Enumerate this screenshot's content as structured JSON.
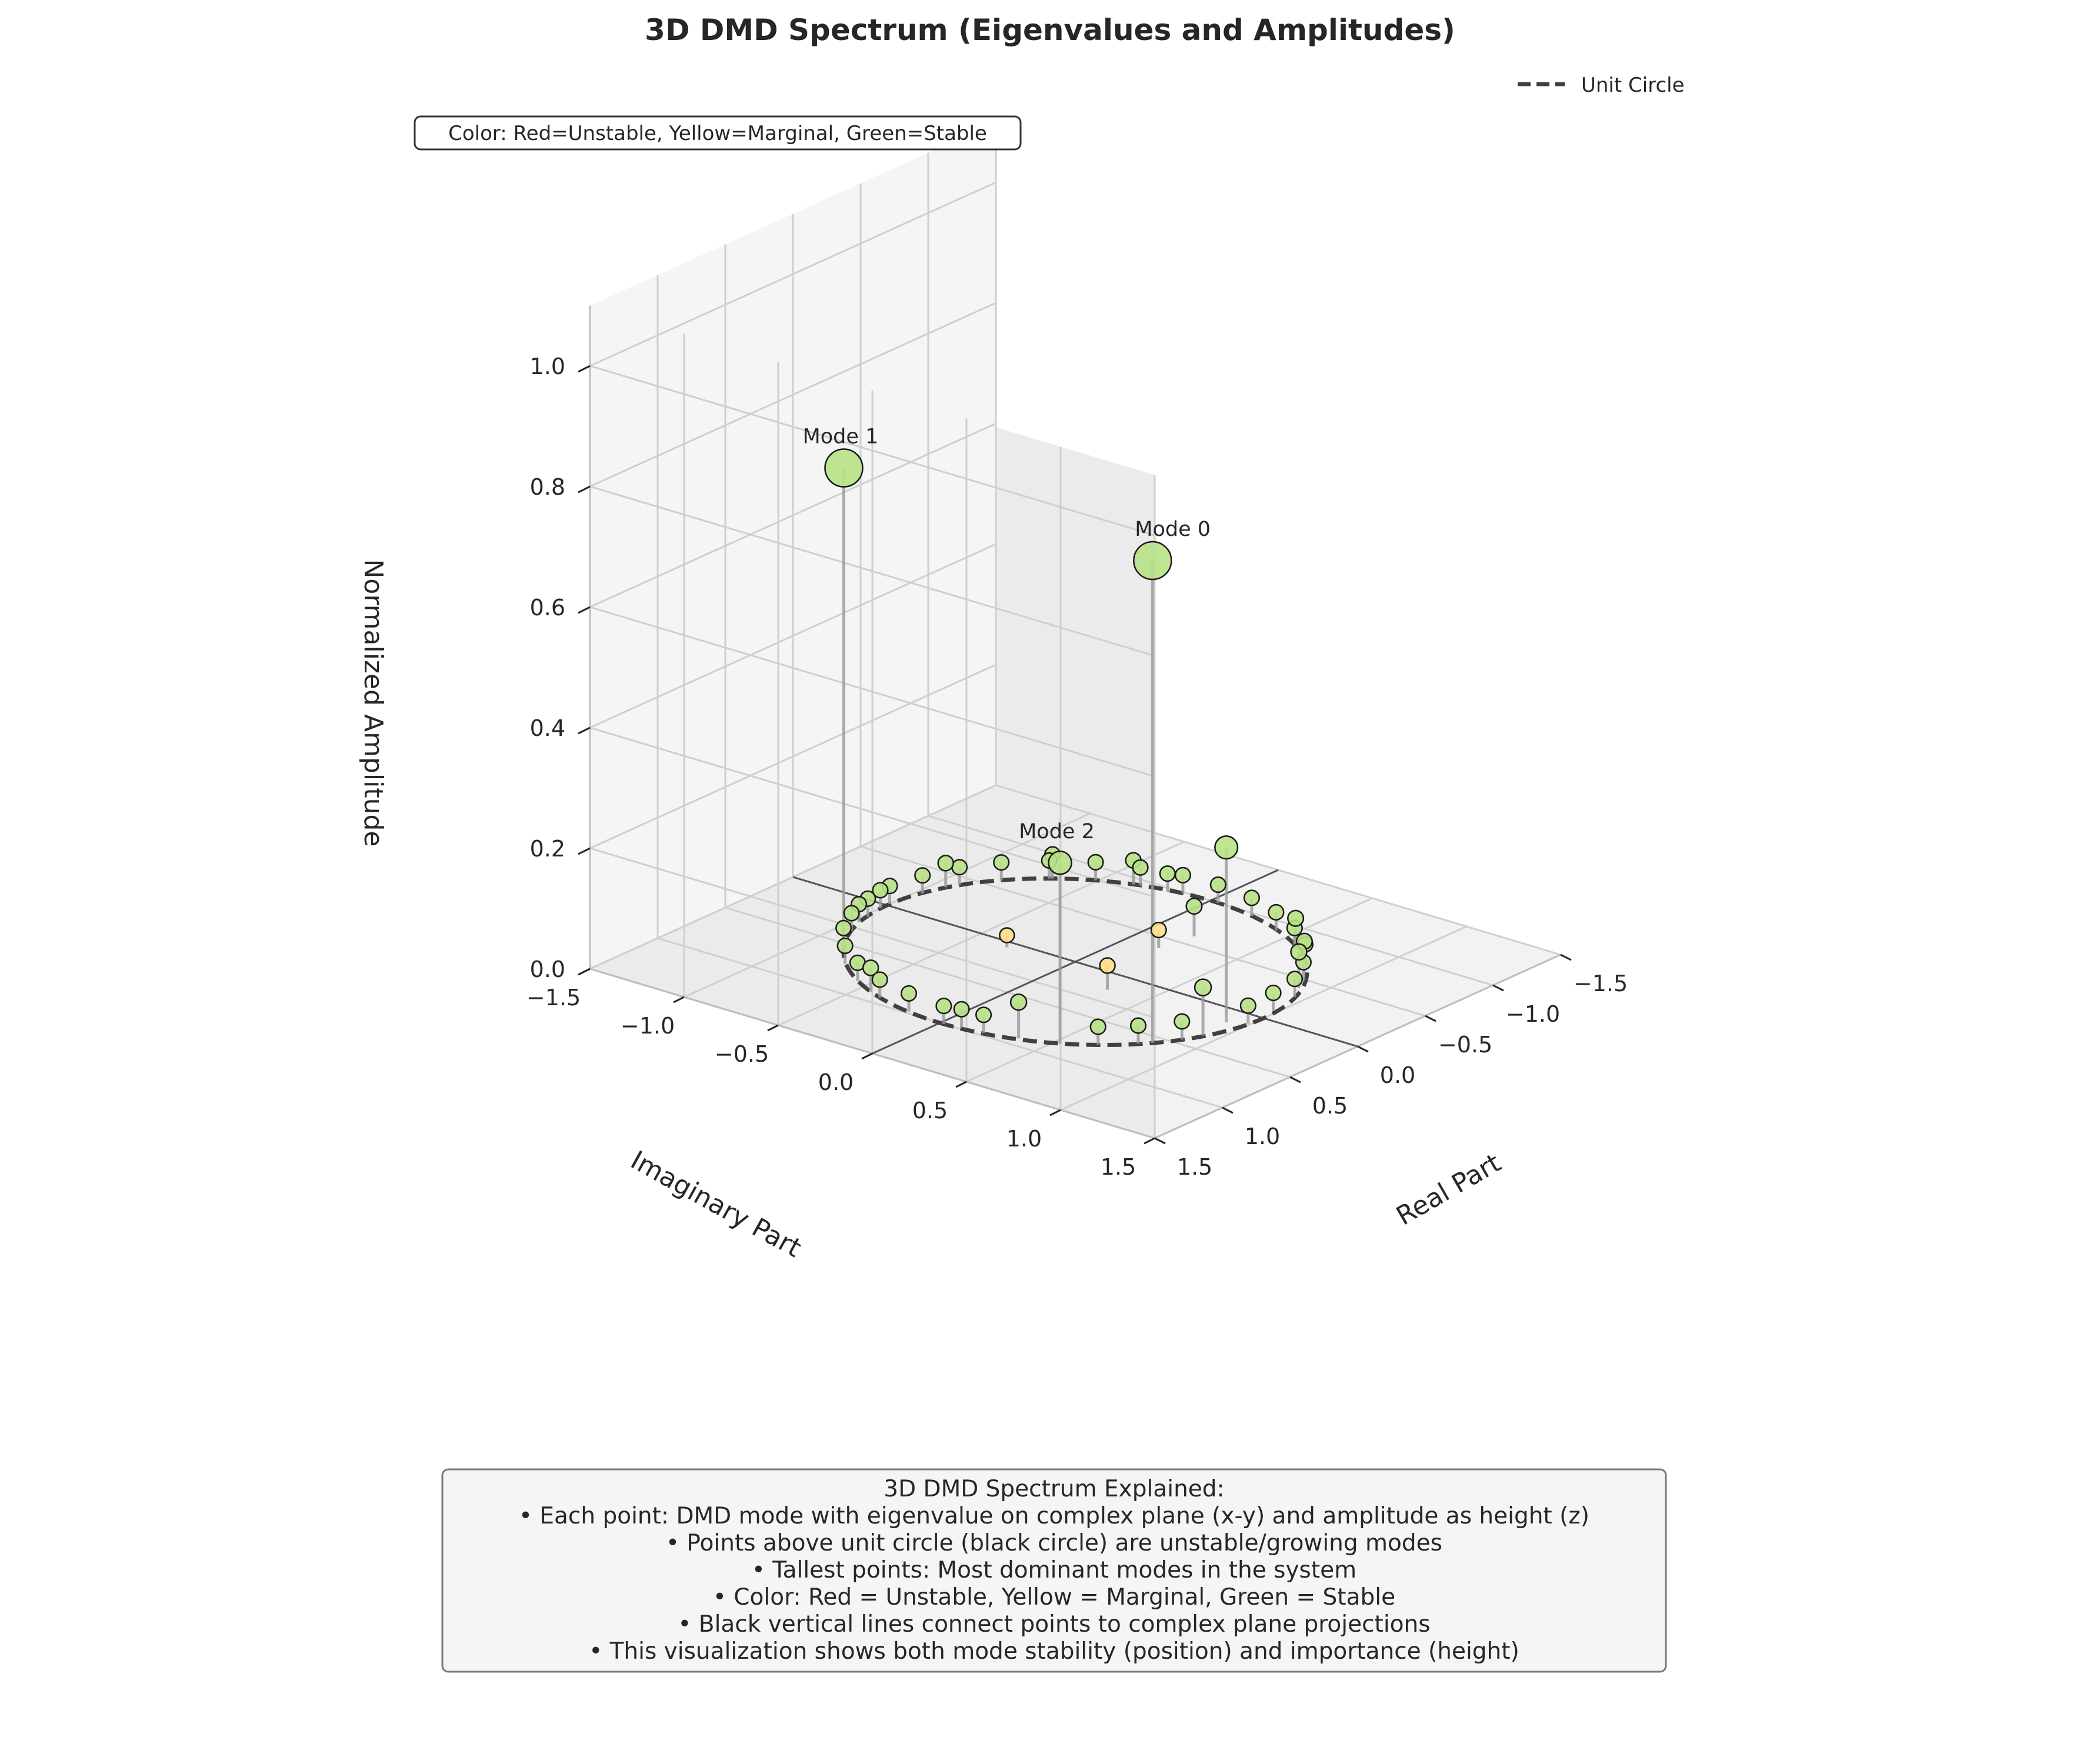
{
  "chart_data": {
    "type": "scatter",
    "projection": "3d",
    "title": "3D DMD Spectrum (Eigenvalues and Amplitudes)",
    "xlabel": "Real Part",
    "ylabel": "Imaginary Part",
    "zlabel": "Normalized Amplitude",
    "xlim": [
      -1.5,
      1.5
    ],
    "ylim": [
      -1.5,
      1.5
    ],
    "zlim": [
      0,
      1.1
    ],
    "x_ticks": [
      "−1.5",
      "−1.0",
      "−0.5",
      "0.0",
      "0.5",
      "1.0",
      "1.5"
    ],
    "y_ticks": [
      "−1.5",
      "−1.0",
      "−0.5",
      "0.0",
      "0.5",
      "1.0",
      "1.5"
    ],
    "z_ticks": [
      "0.0",
      "0.2",
      "0.4",
      "0.6",
      "0.8",
      "1.0"
    ],
    "x_tick_values": [
      -1.5,
      -1.0,
      -0.5,
      0.0,
      0.5,
      1.0,
      1.5
    ],
    "y_tick_values": [
      -1.5,
      -1.0,
      -0.5,
      0.0,
      0.5,
      1.0,
      1.5
    ],
    "z_tick_values": [
      0,
      0.2,
      0.4,
      0.6,
      0.8,
      1.0
    ],
    "grid": true,
    "legend": {
      "entries": [
        "Unit Circle"
      ],
      "placement": "top-right"
    },
    "colors": {
      "stable": "#b8e186",
      "marginal": "#fee08b",
      "unstable": "#d73027",
      "unit_circle": "#404040",
      "stem": "#999999"
    },
    "color_note": "Color: Red=Unstable, Yellow=Marginal, Green=Stable",
    "annotations": [
      {
        "text": "Mode 0",
        "mode": 0
      },
      {
        "text": "Mode 1",
        "mode": 1
      },
      {
        "text": "Mode 2",
        "mode": 2
      }
    ],
    "modes": [
      {
        "real": 0.57,
        "imag": 0.82,
        "amp": 0.8,
        "stability": "stable"
      },
      {
        "real": 0.57,
        "imag": -0.82,
        "amp": 0.8,
        "stability": "stable"
      },
      {
        "real": 0.85,
        "imag": 0.53,
        "amp": 0.3,
        "stability": "stable"
      },
      {
        "real": 0.15,
        "imag": 0.91,
        "amp": 0.29,
        "stability": "stable"
      },
      {
        "real": 0.92,
        "imag": 0.36,
        "amp": 0.06,
        "stability": "stable"
      },
      {
        "real": 0.35,
        "imag": 0.93,
        "amp": 0.08,
        "stability": "stable"
      },
      {
        "real": 0.18,
        "imag": 0.3,
        "amp": 0.04,
        "stability": "marginal"
      },
      {
        "real": 0.06,
        "imag": -0.32,
        "amp": 0.02,
        "stability": "marginal"
      },
      {
        "real": -0.38,
        "imag": 0.17,
        "amp": 0.03,
        "stability": "marginal"
      },
      {
        "real": 0.1,
        "imag": 0.99,
        "amp": 0.03,
        "stability": "stable"
      },
      {
        "real": -0.1,
        "imag": 0.98,
        "amp": 0.03,
        "stability": "stable"
      },
      {
        "real": -0.3,
        "imag": 0.95,
        "amp": 0.03,
        "stability": "stable"
      },
      {
        "real": -0.49,
        "imag": 0.86,
        "amp": 0.03,
        "stability": "stable"
      },
      {
        "real": -0.67,
        "imag": 0.74,
        "amp": 0.03,
        "stability": "stable"
      },
      {
        "real": -0.8,
        "imag": 0.59,
        "amp": 0.03,
        "stability": "stable"
      },
      {
        "real": -0.9,
        "imag": 0.42,
        "amp": 0.03,
        "stability": "stable"
      },
      {
        "real": -0.97,
        "imag": 0.24,
        "amp": 0.03,
        "stability": "stable"
      },
      {
        "real": -1.0,
        "imag": 0.04,
        "amp": 0.03,
        "stability": "stable"
      },
      {
        "real": -0.99,
        "imag": -0.14,
        "amp": 0.03,
        "stability": "stable"
      },
      {
        "real": -0.94,
        "imag": -0.33,
        "amp": 0.03,
        "stability": "stable"
      },
      {
        "real": -0.86,
        "imag": -0.51,
        "amp": 0.03,
        "stability": "stable"
      },
      {
        "real": -0.74,
        "imag": -0.67,
        "amp": 0.03,
        "stability": "stable"
      },
      {
        "real": -0.58,
        "imag": -0.81,
        "amp": 0.03,
        "stability": "stable"
      },
      {
        "real": -0.41,
        "imag": -0.91,
        "amp": 0.03,
        "stability": "stable"
      },
      {
        "real": -0.22,
        "imag": -0.97,
        "amp": 0.03,
        "stability": "stable"
      },
      {
        "real": -0.02,
        "imag": -1.0,
        "amp": 0.03,
        "stability": "stable"
      },
      {
        "real": 0.17,
        "imag": -0.98,
        "amp": 0.03,
        "stability": "stable"
      },
      {
        "real": 0.36,
        "imag": -0.93,
        "amp": 0.03,
        "stability": "stable"
      },
      {
        "real": 0.53,
        "imag": -0.85,
        "amp": 0.03,
        "stability": "stable"
      },
      {
        "real": 0.7,
        "imag": -0.72,
        "amp": 0.03,
        "stability": "stable"
      },
      {
        "real": 0.83,
        "imag": -0.56,
        "amp": 0.03,
        "stability": "stable"
      },
      {
        "real": 0.93,
        "imag": -0.37,
        "amp": 0.03,
        "stability": "stable"
      },
      {
        "real": 0.98,
        "imag": -0.18,
        "amp": 0.03,
        "stability": "stable"
      },
      {
        "real": 1.0,
        "imag": 0.02,
        "amp": 0.03,
        "stability": "stable"
      },
      {
        "real": 0.97,
        "imag": 0.21,
        "amp": 0.03,
        "stability": "stable"
      },
      {
        "real": 0.75,
        "imag": 0.66,
        "amp": 0.03,
        "stability": "stable"
      },
      {
        "real": 0.62,
        "imag": 0.78,
        "amp": 0.03,
        "stability": "stable"
      },
      {
        "real": 0.45,
        "imag": 0.89,
        "amp": 0.03,
        "stability": "stable"
      },
      {
        "real": -0.6,
        "imag": 0.2,
        "amp": 0.05,
        "stability": "stable"
      },
      {
        "real": -0.4,
        "imag": 0.9,
        "amp": 0.06,
        "stability": "stable"
      },
      {
        "real": -0.58,
        "imag": 0.8,
        "amp": 0.05,
        "stability": "stable"
      },
      {
        "real": -0.78,
        "imag": 0.61,
        "amp": 0.05,
        "stability": "stable"
      },
      {
        "real": -0.93,
        "imag": -0.36,
        "amp": 0.04,
        "stability": "stable"
      },
      {
        "real": 0.9,
        "imag": -0.44,
        "amp": 0.04,
        "stability": "stable"
      },
      {
        "real": 0.25,
        "imag": -0.97,
        "amp": 0.03,
        "stability": "stable"
      },
      {
        "real": -0.35,
        "imag": -0.94,
        "amp": 0.04,
        "stability": "stable"
      },
      {
        "real": -0.75,
        "imag": -0.66,
        "amp": 0.04,
        "stability": "stable"
      },
      {
        "real": 0.98,
        "imag": 0.1,
        "amp": 0.03,
        "stability": "stable"
      },
      {
        "real": 0.05,
        "imag": -1.0,
        "amp": 0.03,
        "stability": "stable"
      },
      {
        "real": -0.96,
        "imag": -0.2,
        "amp": 0.03,
        "stability": "stable"
      }
    ],
    "explanation": {
      "title": "3D DMD Spectrum Explained:",
      "lines": [
        "• Each point: DMD mode with eigenvalue on complex plane (x-y) and amplitude as height (z)",
        "• Points above unit circle (black circle) are unstable/growing modes",
        "• Tallest points: Most dominant modes in the system",
        "• Color: Red = Unstable, Yellow = Marginal, Green = Stable",
        "• Black vertical lines connect points to complex plane projections",
        "• This visualization shows both mode stability (position) and importance (height)"
      ]
    }
  }
}
